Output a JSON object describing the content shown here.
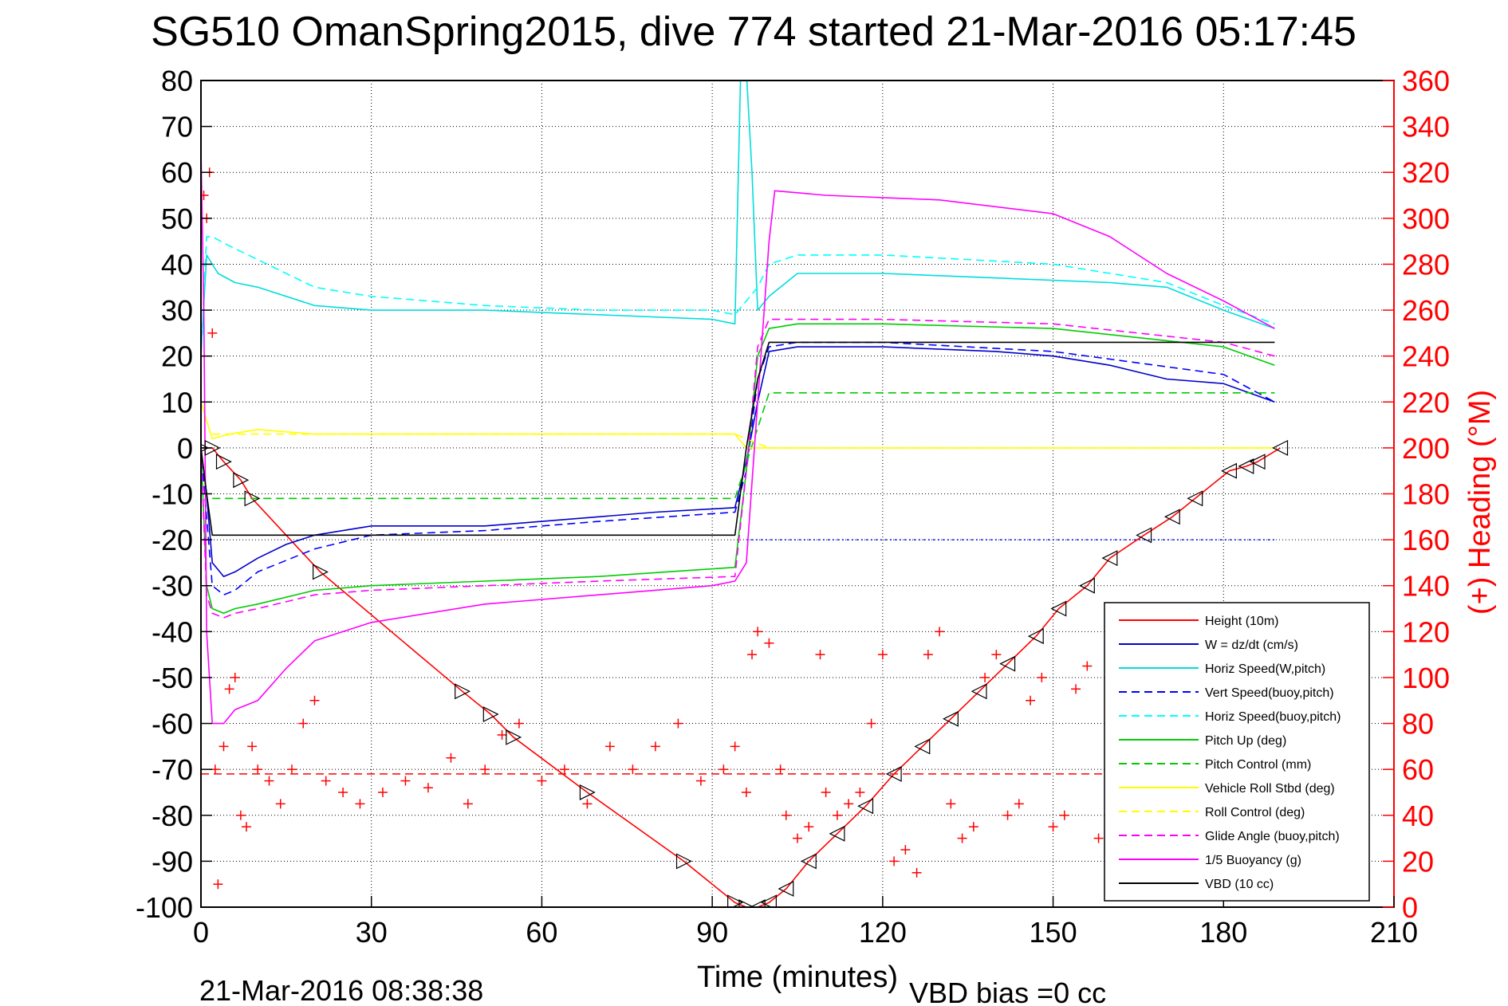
{
  "chart_data": {
    "type": "line",
    "title": "SG510 OmanSpring2015, dive 774 started 21-Mar-2016 05:17:45",
    "xlabel": "Time (minutes)",
    "ylabel_right": "(+) Heading (°M)",
    "xlim": [
      0,
      210
    ],
    "ylim": [
      -100,
      80
    ],
    "y2lim": [
      0,
      360
    ],
    "x_ticks": [
      0,
      30,
      60,
      90,
      120,
      150,
      180,
      210
    ],
    "y_ticks": [
      80,
      70,
      60,
      50,
      40,
      30,
      20,
      10,
      0,
      -10,
      -20,
      -30,
      -40,
      -50,
      -60,
      -70,
      -80,
      -90,
      -100
    ],
    "y2_ticks": [
      360,
      340,
      320,
      300,
      280,
      260,
      240,
      220,
      200,
      180,
      160,
      140,
      120,
      100,
      80,
      60,
      40,
      20,
      0
    ],
    "grid": true,
    "legend_position": "bottom-right",
    "annotations": {
      "end_time": "21-Mar-2016 08:38:38",
      "vbd_bias": "VBD bias =0 cc"
    },
    "series": [
      {
        "name": "Height (10m)",
        "color": "#ff0000",
        "style": "solid",
        "x": [
          0,
          2,
          4,
          7,
          9,
          21,
          46,
          51,
          55,
          68,
          85,
          94,
          96,
          98,
          100,
          103,
          107,
          112,
          117,
          122,
          127,
          132,
          137,
          142,
          147,
          151,
          156,
          160,
          166,
          171,
          175,
          181,
          184,
          186,
          190
        ],
        "y": [
          0,
          0,
          -3,
          -7,
          -11,
          -27,
          -53,
          -58,
          -63,
          -75,
          -90,
          -99,
          -100,
          -100,
          -99,
          -96,
          -90,
          -84,
          -78,
          -71,
          -65,
          -59,
          -53,
          -47,
          -41,
          -35,
          -30,
          -24,
          -19,
          -15,
          -11,
          -5,
          -4,
          -3,
          0
        ]
      },
      {
        "name": "W = dz/dt (cm/s)",
        "color": "#0000cc",
        "style": "solid",
        "x": [
          0,
          1,
          2,
          4,
          6,
          10,
          15,
          20,
          30,
          40,
          50,
          60,
          70,
          80,
          94,
          96,
          98,
          100,
          105,
          120,
          140,
          150,
          160,
          170,
          180,
          189
        ],
        "y": [
          0,
          -10,
          -25,
          -28,
          -27,
          -24,
          -21,
          -19,
          -17,
          -17,
          -17,
          -16,
          -15,
          -14,
          -13,
          -3,
          10,
          21,
          22,
          22,
          21,
          20,
          18,
          15,
          14,
          10
        ]
      },
      {
        "name": "Horiz Speed(W,pitch)",
        "color": "#00dddd",
        "style": "solid",
        "x": [
          0,
          1,
          3,
          6,
          10,
          20,
          30,
          50,
          70,
          90,
          94,
          95,
          96,
          97,
          98,
          100,
          105,
          120,
          140,
          160,
          170,
          180,
          189
        ],
        "y": [
          20,
          42,
          38,
          36,
          35,
          31,
          30,
          30,
          29,
          28,
          27,
          82,
          82,
          60,
          30,
          33,
          38,
          38,
          37,
          36,
          35,
          30,
          26
        ]
      },
      {
        "name": "Vert Speed(buoy,pitch)",
        "color": "#0000ff",
        "style": "dashed",
        "x": [
          0,
          1,
          2,
          4,
          6,
          10,
          20,
          30,
          50,
          70,
          94,
          96,
          98,
          100,
          105,
          120,
          150,
          180,
          189
        ],
        "y": [
          0,
          -15,
          -30,
          -32,
          -31,
          -27,
          -22,
          -19,
          -18,
          -16,
          -14,
          -5,
          15,
          22,
          23,
          23,
          21,
          16,
          10
        ]
      },
      {
        "name": "Horiz Speed(buoy,pitch)",
        "color": "#00ffff",
        "style": "dashed",
        "x": [
          0,
          1,
          2,
          5,
          10,
          20,
          30,
          50,
          70,
          90,
          94,
          98,
          100,
          105,
          120,
          150,
          170,
          180,
          189
        ],
        "y": [
          20,
          46,
          46,
          44,
          41,
          35,
          33,
          31,
          30,
          30,
          29,
          35,
          40,
          42,
          42,
          40,
          36,
          31,
          27
        ]
      },
      {
        "name": "Pitch Up (deg)",
        "color": "#00cc00",
        "style": "solid",
        "x": [
          0,
          1,
          2,
          4,
          6,
          10,
          20,
          30,
          50,
          70,
          94,
          96,
          98,
          100,
          105,
          120,
          150,
          180,
          189
        ],
        "y": [
          0,
          -30,
          -35,
          -36,
          -35,
          -34,
          -31,
          -30,
          -29,
          -28,
          -26,
          -5,
          20,
          26,
          27,
          27,
          26,
          22,
          18
        ]
      },
      {
        "name": "Pitch Control (mm)",
        "color": "#00cc00",
        "style": "dashed",
        "x": [
          2,
          20,
          94,
          100,
          189
        ],
        "y": [
          -11,
          -11,
          -11,
          12,
          12
        ]
      },
      {
        "name": "Vehicle Roll Stbd (deg)",
        "color": "#ffff00",
        "style": "solid",
        "x": [
          0,
          2,
          5,
          10,
          20,
          40,
          60,
          80,
          94,
          96,
          100,
          110,
          140,
          170,
          189
        ],
        "y": [
          10,
          2,
          3,
          4,
          3,
          3,
          3,
          3,
          3,
          0,
          0,
          0,
          0,
          0,
          0
        ]
      },
      {
        "name": "Roll Control (deg)",
        "color": "#ffff00",
        "style": "dashed",
        "x": [
          2,
          94,
          100,
          189
        ],
        "y": [
          3,
          3,
          0,
          0
        ]
      },
      {
        "name": "Glide Angle (buoy,pitch)",
        "color": "#ff00ff",
        "style": "dashed",
        "x": [
          0,
          1,
          2,
          4,
          6,
          10,
          20,
          30,
          50,
          70,
          94,
          96,
          98,
          100,
          105,
          120,
          150,
          180,
          189
        ],
        "y": [
          0,
          -32,
          -36,
          -37,
          -36,
          -35,
          -32,
          -31,
          -30,
          -29,
          -28,
          -5,
          22,
          28,
          28,
          28,
          27,
          23,
          20
        ]
      },
      {
        "name": "1/5 Buoyancy (g)",
        "color": "#ff00ff",
        "style": "solid",
        "x": [
          0,
          0.5,
          1,
          2,
          4,
          6,
          10,
          15,
          20,
          30,
          50,
          70,
          90,
          94,
          96,
          98,
          100,
          101,
          110,
          130,
          150,
          160,
          170,
          180,
          189
        ],
        "y": [
          65,
          30,
          -40,
          -60,
          -60,
          -57,
          -55,
          -48,
          -42,
          -38,
          -34,
          -32,
          -30,
          -29,
          -25,
          10,
          45,
          56,
          55,
          54,
          51,
          46,
          38,
          32,
          26
        ]
      },
      {
        "name": "VBD (10 cc)",
        "color": "#000000",
        "style": "solid",
        "x": [
          0,
          1,
          2,
          94,
          96,
          98,
          100,
          189
        ],
        "y": [
          0,
          -10,
          -19,
          -19,
          0,
          15,
          23,
          23
        ]
      }
    ],
    "heading": {
      "axis": "right",
      "marker": "+",
      "color": "#ff0000",
      "x": [
        0.5,
        1,
        1.5,
        2,
        2.5,
        3,
        4,
        5,
        6,
        7,
        8,
        9,
        10,
        12,
        14,
        16,
        18,
        20,
        22,
        25,
        28,
        32,
        36,
        40,
        44,
        47,
        50,
        53,
        56,
        60,
        64,
        68,
        72,
        76,
        80,
        84,
        88,
        92,
        94,
        96,
        97,
        98,
        100,
        102,
        103,
        105,
        107,
        109,
        110,
        112,
        114,
        116,
        118,
        120,
        122,
        124,
        126,
        128,
        130,
        132,
        134,
        136,
        138,
        140,
        142,
        144,
        146,
        148,
        150,
        152,
        154,
        156,
        158,
        160,
        162,
        164,
        166,
        168,
        170,
        172,
        174,
        176,
        178,
        180,
        182,
        184,
        186,
        188
      ],
      "y": [
        310,
        300,
        320,
        250,
        60,
        10,
        70,
        95,
        100,
        40,
        35,
        70,
        60,
        55,
        45,
        60,
        80,
        90,
        55,
        50,
        45,
        50,
        55,
        52,
        65,
        45,
        60,
        75,
        80,
        55,
        60,
        45,
        70,
        60,
        70,
        80,
        55,
        60,
        70,
        50,
        110,
        120,
        115,
        60,
        40,
        30,
        35,
        110,
        50,
        40,
        45,
        50,
        80,
        110,
        20,
        25,
        15,
        110,
        120,
        45,
        30,
        35,
        100,
        110,
        40,
        45,
        90,
        100,
        35,
        40,
        95,
        105,
        30,
        25,
        80,
        100,
        30,
        40,
        90,
        95,
        30,
        40,
        85,
        90,
        60,
        40,
        70,
        80
      ],
      "reference_line": 58
    },
    "reference_lines": [
      {
        "axis": "left",
        "y": -20,
        "color": "#0000ff",
        "style": "dotted",
        "x_start": 96,
        "x_end": 189
      }
    ]
  }
}
